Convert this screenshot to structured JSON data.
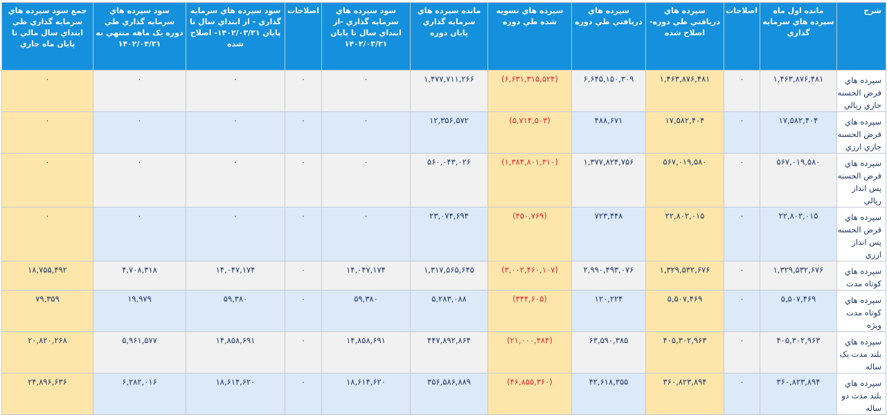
{
  "table": {
    "headers": {
      "desc": "شرح",
      "beg": "مانده اول ماه سپرده هاي سرمايه گذاري",
      "adj1": "اصلاحات",
      "recv_adj": "سپرده هاي دريافتي طي دوره- اصلاح شده",
      "recv": "سپرده هاي دريافتي طي دوره",
      "settled": "سپرده هاي تسويه شده طي دوره",
      "end": "مانده سپرده هاي سرمايه گذاري پايان دوره",
      "p1": "سود سپرده هاي سرمايه گذاري -از ابتداي سال تا پايان ۱۴۰۲/۰۳/۳۱",
      "adj2": "اصلاحات",
      "p2": "سود سپرده هاي سرمايه گذاري - از ابتداي سال تا پايان ۱۴۰۲/۰۳/۳۱- اصلاح شده",
      "p3": "سود سپرده هاي سرمايه گذاري طي دوره يک ماهه منتهي به ۱۴۰۲/۰۴/۳۱",
      "p4": "جمع سود سپرده هاي سرمايه گذاري طي ابتداي سال مالي تا پايان ماه جاري"
    },
    "rows": [
      {
        "desc": "سپرده هاي قرض الحسنه جاري ريالي",
        "beg": "۱,۴۶۳,۸۷۶,۴۸۱",
        "adj1": "۰",
        "recv_adj": "۱,۴۶۳,۸۷۶,۴۸۱",
        "recv": "۶,۶۴۵,۱۵۰,۳۰۹",
        "settled": "(۶,۶۳۱,۳۱۵,۵۲۴)",
        "end": "۱,۴۷۷,۷۱۱,۲۶۶",
        "p1": "۰",
        "adj2": "۰",
        "p2": "۰",
        "p3": "۰",
        "p4": "۰"
      },
      {
        "desc": "سپرده هاي قرض الحسنه جاري ارزي",
        "beg": "۱۷,۵۸۲,۴۰۴",
        "adj1": "۰",
        "recv_adj": "۱۷,۵۸۲,۴۰۴",
        "recv": "۴۸۸,۶۷۱",
        "settled": "(۵,۷۱۴,۵۰۳)",
        "end": "۱۲,۳۵۶,۵۷۲",
        "p1": "۰",
        "adj2": "۰",
        "p2": "۰",
        "p3": "۰",
        "p4": "۰"
      },
      {
        "desc": "سپرده هاي قرض الحسنه پس انداز ريالي",
        "beg": "۵۶۷,۰۱۹,۵۸۰",
        "adj1": "۰",
        "recv_adj": "۵۶۷,۰۱۹,۵۸۰",
        "recv": "۱,۳۷۷,۸۲۴,۷۵۶",
        "settled": "(۱,۳۸۴,۸۰۱,۳۱۰)",
        "end": "۵۶۰,۰۴۳,۰۲۶",
        "p1": "۰",
        "adj2": "۰",
        "p2": "۰",
        "p3": "۰",
        "p4": "۰"
      },
      {
        "desc": "سپرده هاي قرض الحسنه پس انداز ارزي",
        "beg": "۲۲,۸۰۲,۰۱۵",
        "adj1": "۰",
        "recv_adj": "۲۲,۸۰۲,۰۱۵",
        "recv": "۷۲۳,۴۴۸",
        "settled": "(۴۵۰,۷۶۹)",
        "end": "۲۳,۰۷۴,۶۹۴",
        "p1": "۰",
        "adj2": "۰",
        "p2": "۰",
        "p3": "۰",
        "p4": "۰"
      },
      {
        "desc": "سپرده هاي کوتاه مدت",
        "beg": "۱,۳۲۹,۵۳۲,۶۷۶",
        "adj1": "۰",
        "recv_adj": "۱,۳۲۹,۵۳۲,۶۷۶",
        "recv": "۲,۹۹۰,۴۹۳,۰۷۶",
        "settled": "(۳,۰۰۲,۴۶۰,۱۰۷)",
        "end": "۱,۳۱۷,۵۶۵,۶۴۵",
        "p1": "۱۴,۰۴۷,۱۷۴",
        "adj2": "۰",
        "p2": "۱۴,۰۴۷,۱۷۴",
        "p3": "۴,۷۰۸,۳۱۸",
        "p4": "۱۸,۷۵۵,۴۹۲"
      },
      {
        "desc": "سپرده هاي کوتاه مدت ويژه",
        "beg": "۵,۵۰۷,۴۶۹",
        "adj1": "۰",
        "recv_adj": "۵,۵۰۷,۴۶۹",
        "recv": "۱۲۰,۲۲۴",
        "settled": "(۳۴۴,۶۰۵)",
        "end": "۵,۲۸۳,۰۸۸",
        "p1": "۵۹,۳۸۰",
        "adj2": "۰",
        "p2": "۵۹,۳۸۰",
        "p3": "۱۹,۹۷۹",
        "p4": "۷۹,۳۵۹"
      },
      {
        "desc": "سپرده هاي بلند مدت يک ساله",
        "beg": "۴۰۵,۳۰۲,۹۶۳",
        "adj1": "۰",
        "recv_adj": "۴۰۵,۳۰۲,۹۶۳",
        "recv": "۶۳,۵۹۰,۳۸۵",
        "settled": "(۲۱,۰۰۰,۴۸۴)",
        "end": "۴۴۷,۸۹۲,۸۶۴",
        "p1": "۱۴,۸۵۸,۶۹۱",
        "adj2": "۰",
        "p2": "۱۴,۸۵۸,۶۹۱",
        "p3": "۵,۹۶۱,۵۷۷",
        "p4": "۲۰,۸۲۰,۲۶۸"
      },
      {
        "desc": "سپرده هاي بلند مدت دو ساله",
        "beg": "۳۶۰,۸۲۳,۸۹۴",
        "adj1": "۰",
        "recv_adj": "۳۶۰,۸۲۳,۸۹۴",
        "recv": "۴۲,۶۱۸,۳۵۵",
        "settled": "(۴۶,۸۵۵,۳۶۰)",
        "end": "۳۵۶,۵۸۶,۸۸۹",
        "p1": "۱۸,۶۱۴,۶۲۰",
        "adj2": "۰",
        "p2": "۱۸,۶۱۴,۶۲۰",
        "p3": "۶,۲۸۲,۰۱۶",
        "p4": "۲۴,۸۹۶,۶۳۶"
      }
    ]
  }
}
